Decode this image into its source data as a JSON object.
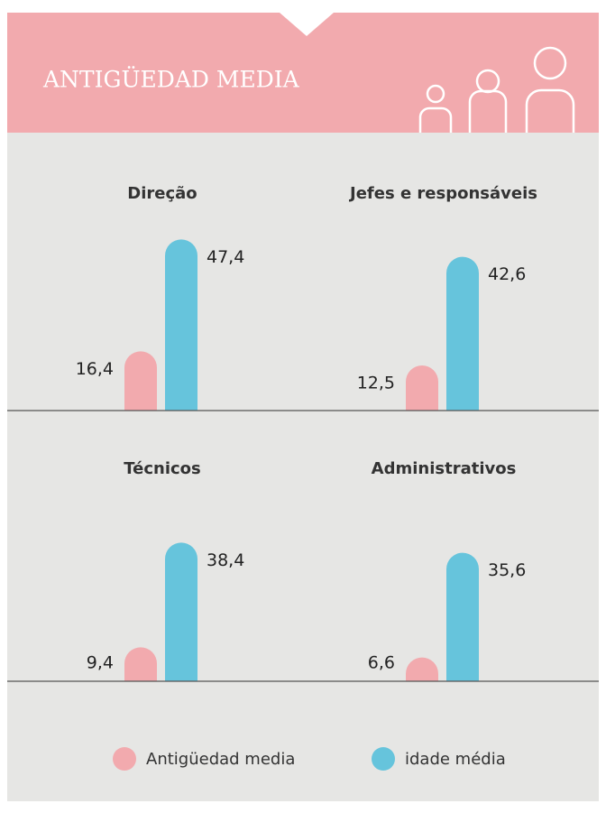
{
  "title": "ANTIGÜEDAD MEDIA",
  "legend": [
    {
      "name": "Antigüedad media",
      "color": "#f2aaae"
    },
    {
      "name": "idade média",
      "color": "#66c4dc"
    }
  ],
  "chart_data": [
    {
      "type": "bar",
      "title": "Direção",
      "values": [
        16.4,
        47.4
      ],
      "value_labels": [
        "16,4",
        "47,4"
      ],
      "ylim": [
        0,
        50
      ]
    },
    {
      "type": "bar",
      "title": "Jefes e responsáveis",
      "values": [
        12.5,
        42.6
      ],
      "value_labels": [
        "12,5",
        "42,6"
      ],
      "ylim": [
        0,
        50
      ]
    },
    {
      "type": "bar",
      "title": "Técnicos",
      "values": [
        9.4,
        38.4
      ],
      "value_labels": [
        "9,4",
        "38,4"
      ],
      "ylim": [
        0,
        50
      ]
    },
    {
      "type": "bar",
      "title": "Administrativos",
      "values": [
        6.6,
        35.6
      ],
      "value_labels": [
        "6,6",
        "35,6"
      ],
      "ylim": [
        0,
        50
      ]
    }
  ]
}
